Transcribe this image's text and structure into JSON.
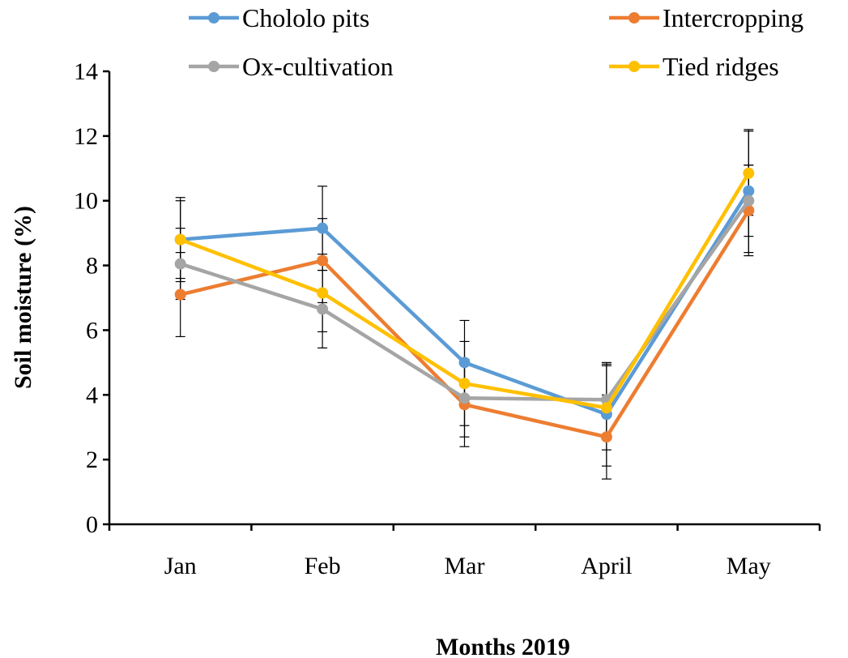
{
  "chart_data": {
    "type": "line",
    "title": "",
    "xlabel": "Months 2019",
    "ylabel": "Soil moisture (%)",
    "categories": [
      "Jan",
      "Feb",
      "Mar",
      "April",
      "May"
    ],
    "ylim": [
      0,
      14
    ],
    "yticks": [
      0,
      2,
      4,
      6,
      8,
      10,
      12,
      14
    ],
    "grid": false,
    "legend_position": "top",
    "series": [
      {
        "name": "Chololo pits",
        "color": "#5B9BD5",
        "values": [
          8.8,
          9.15,
          5.0,
          3.4,
          10.3
        ],
        "errors": [
          1.3,
          1.3,
          1.3,
          1.6,
          1.9
        ]
      },
      {
        "name": "Intercropping",
        "color": "#ED7D31",
        "values": [
          7.1,
          8.15,
          3.7,
          2.7,
          9.7
        ],
        "errors": [
          1.3,
          1.3,
          1.3,
          1.3,
          1.4
        ]
      },
      {
        "name": "Ox-cultivation",
        "color": "#A5A5A5",
        "values": [
          8.05,
          6.65,
          3.9,
          3.85,
          10.0
        ],
        "errors": [
          1.1,
          1.2,
          1.2,
          1.1,
          1.1
        ]
      },
      {
        "name": "Tied ridges",
        "color": "#FFC000",
        "values": [
          8.8,
          7.15,
          4.35,
          3.6,
          10.85
        ],
        "errors": [
          1.2,
          1.2,
          1.3,
          1.3,
          1.3
        ]
      }
    ]
  }
}
